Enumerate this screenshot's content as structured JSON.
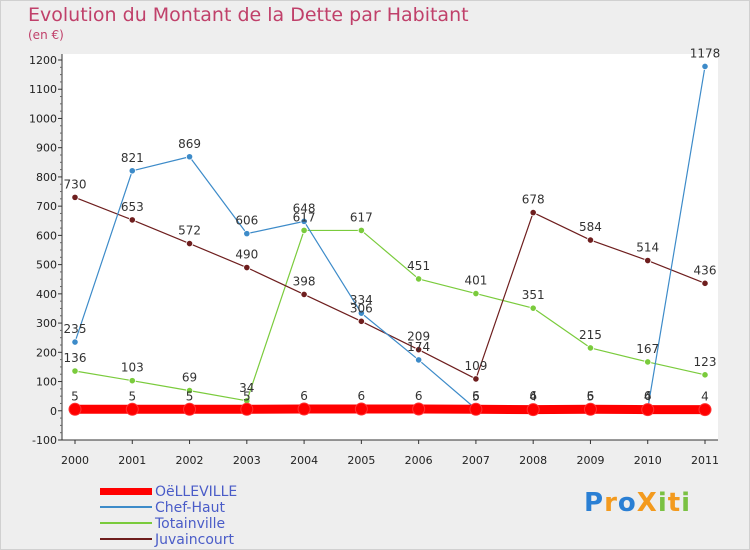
{
  "header": {
    "title": "Evolution du Montant de la Dette par Habitant",
    "subtitle": "(en €)"
  },
  "logo": {
    "text": "ProXiti",
    "letters": [
      {
        "ch": "P",
        "color": "#2a7fd4"
      },
      {
        "ch": "r",
        "color": "#f39a1e"
      },
      {
        "ch": "o",
        "color": "#2a7fd4"
      },
      {
        "ch": "X",
        "color": "#f39a1e"
      },
      {
        "ch": "i",
        "color": "#7ac142"
      },
      {
        "ch": "t",
        "color": "#f39a1e"
      },
      {
        "ch": "i",
        "color": "#7ac142"
      }
    ]
  },
  "chart_data": {
    "type": "line",
    "title": "Evolution du Montant de la Dette par Habitant",
    "subtitle": "(en €)",
    "x": [
      2000,
      2001,
      2002,
      2003,
      2004,
      2005,
      2006,
      2007,
      2008,
      2009,
      2010,
      2011
    ],
    "ylim": [
      -100,
      1200
    ],
    "yticks": [
      -100,
      0,
      100,
      200,
      300,
      400,
      500,
      600,
      700,
      800,
      900,
      1000,
      1100,
      1200
    ],
    "grid": false,
    "legend_position": "bottom-left",
    "series": [
      {
        "name": "OëLLEVILLE",
        "color": "#ff0000",
        "values": [
          5,
          5,
          5,
          5,
          6,
          6,
          6,
          5,
          4,
          5,
          4,
          4
        ],
        "labels": [
          "5",
          "5",
          "5",
          "5",
          "6",
          "6",
          "6",
          "5",
          "4",
          "5",
          "4",
          "4"
        ]
      },
      {
        "name": "Chef-Haut",
        "color": "#3d8bc9",
        "values": [
          235,
          821,
          869,
          606,
          648,
          334,
          174,
          6,
          6,
          6,
          6,
          1178
        ],
        "labels": [
          "235",
          "821",
          "869",
          "606",
          "648",
          "334",
          "174",
          "6",
          "6",
          "6",
          "6",
          "1178"
        ]
      },
      {
        "name": "Totainville",
        "color": "#7acb3c",
        "values": [
          136,
          103,
          69,
          34,
          617,
          617,
          451,
          401,
          351,
          215,
          167,
          123
        ],
        "labels": [
          "136",
          "103",
          "69",
          "34",
          "617",
          "617",
          "451",
          "401",
          "351",
          "215",
          "167",
          "123"
        ]
      },
      {
        "name": "Juvaincourt",
        "color": "#6e1e1e",
        "values": [
          730,
          653,
          572,
          490,
          398,
          306,
          209,
          109,
          678,
          584,
          514,
          436
        ],
        "labels": [
          "730",
          "653",
          "572",
          "490",
          "398",
          "306",
          "209",
          "109",
          "678",
          "584",
          "514",
          "436"
        ]
      }
    ]
  }
}
